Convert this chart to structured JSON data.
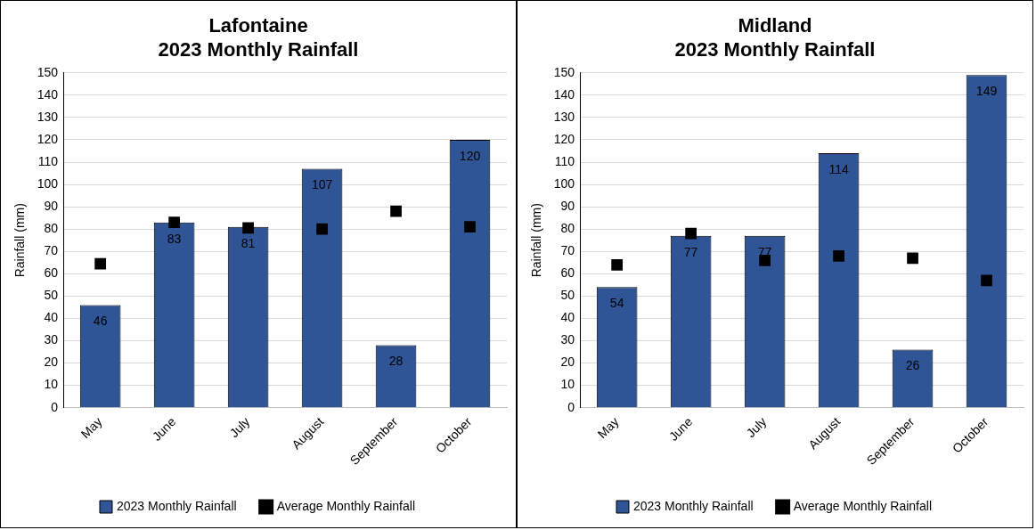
{
  "chart_data": [
    {
      "type": "bar",
      "title": "Lafontaine",
      "subtitle": "2023 Monthly Rainfall",
      "ylabel": "Rainfall (mm)",
      "categories": [
        "May",
        "June",
        "July",
        "August",
        "September",
        "October"
      ],
      "series": [
        {
          "name": "2023 Monthly Rainfall",
          "color": "#2f5597",
          "values": [
            46,
            83,
            81,
            107,
            28,
            120
          ],
          "value_labels": [
            "46",
            "83",
            "81",
            "107",
            "28",
            "120"
          ]
        },
        {
          "name": "Average Monthly Rainfall",
          "type": "scatter",
          "marker": "square",
          "color": "#000000",
          "x": [
            "May",
            "June",
            "July",
            "August",
            "September",
            "October"
          ],
          "values": [
            64.5,
            83,
            80.5,
            80,
            88,
            81
          ]
        }
      ],
      "ylim": [
        0,
        150
      ],
      "yticks": [
        0,
        10,
        20,
        30,
        40,
        50,
        60,
        70,
        80,
        90,
        100,
        110,
        120,
        130,
        140,
        150
      ],
      "grid": "y",
      "legend": "bottom"
    },
    {
      "type": "bar",
      "title": "Midland",
      "subtitle": "2023 Monthly Rainfall",
      "ylabel": "Rainfall (mm)",
      "categories": [
        "May",
        "June",
        "July",
        "August",
        "September",
        "October"
      ],
      "series": [
        {
          "name": "2023 Monthly Rainfall",
          "color": "#2f5597",
          "values": [
            54,
            77,
            77,
            114,
            26,
            149
          ],
          "value_labels": [
            "54",
            "77",
            "77",
            "114",
            "26",
            "149"
          ]
        },
        {
          "name": "Average Monthly Rainfall",
          "type": "scatter",
          "marker": "square",
          "color": "#000000",
          "x": [
            "May",
            "June",
            "July",
            "August",
            "September",
            "October"
          ],
          "values": [
            64,
            78,
            66,
            68,
            67,
            57
          ]
        }
      ],
      "ylim": [
        0,
        150
      ],
      "yticks": [
        0,
        10,
        20,
        30,
        40,
        50,
        60,
        70,
        80,
        90,
        100,
        110,
        120,
        130,
        140,
        150
      ],
      "grid": "y",
      "legend": "bottom"
    }
  ]
}
